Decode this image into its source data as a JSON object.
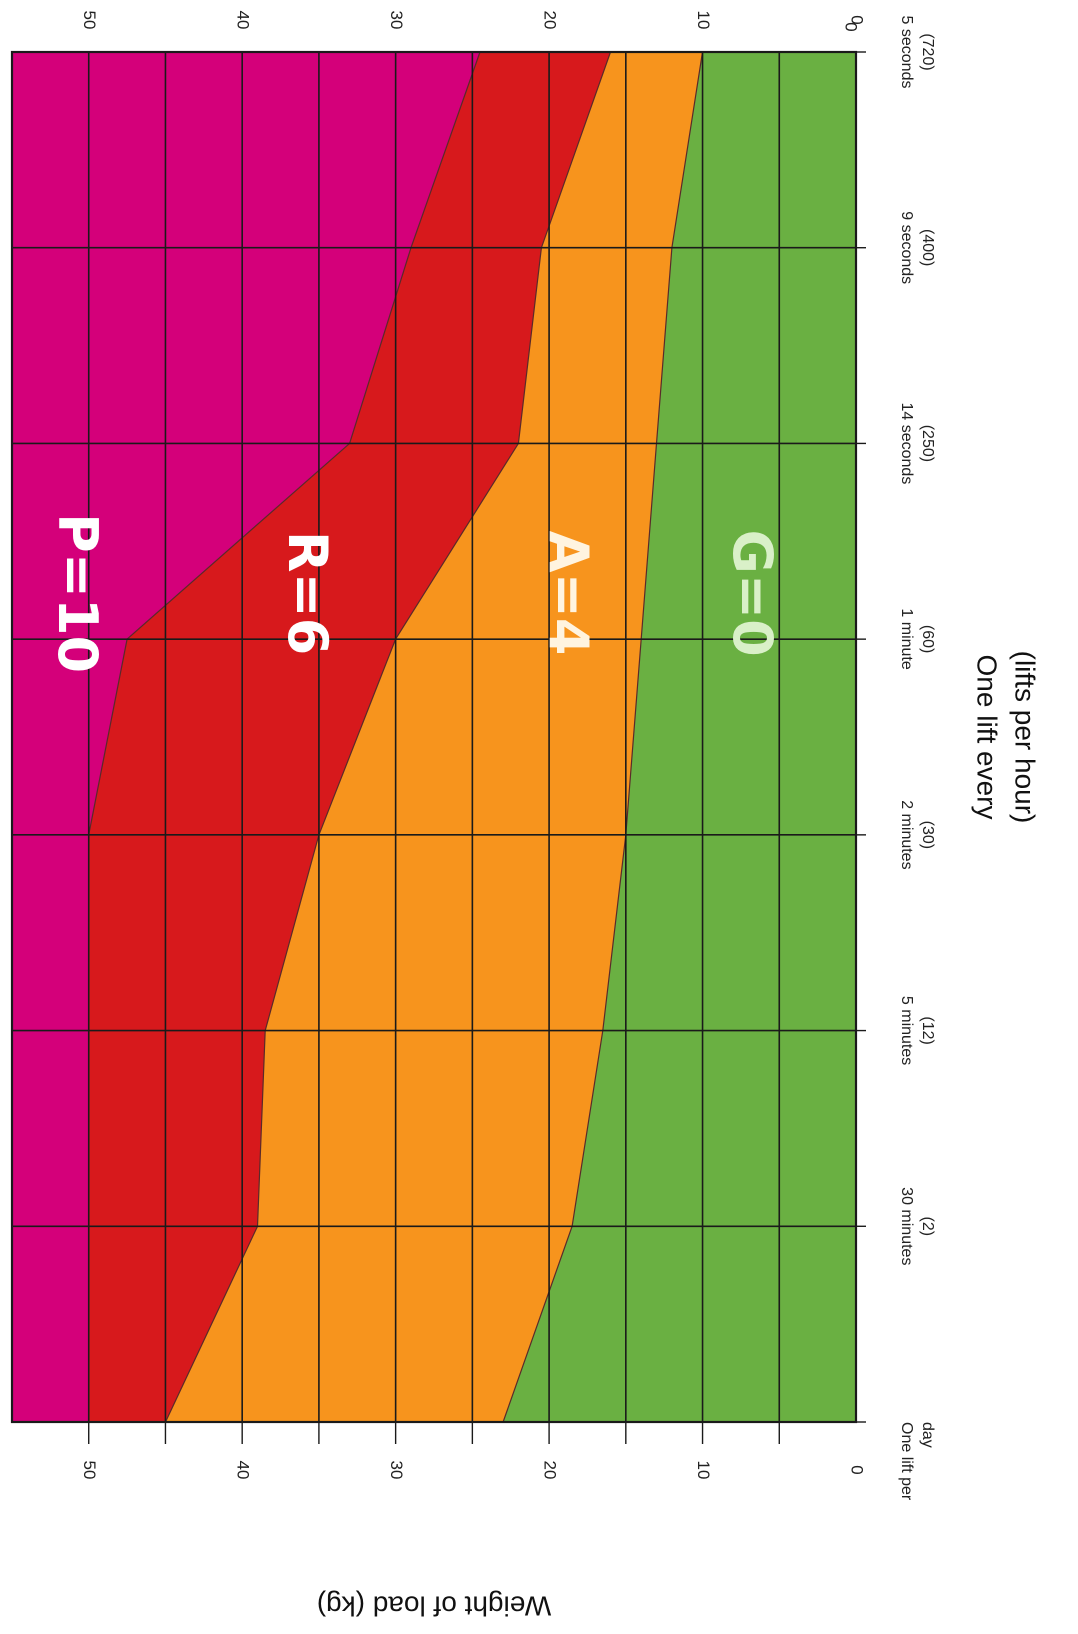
{
  "chart_data": {
    "type": "area",
    "orientation": "rotated-90-clockwise",
    "ylabel": "Weight of load (kg)",
    "xlabel": [
      "One lift every",
      "(lifts per hour)"
    ],
    "ylim": [
      0,
      55
    ],
    "yticks": [
      0,
      10,
      20,
      30,
      40,
      50
    ],
    "grid": true,
    "categories": [
      [
        "One lift per",
        "day"
      ],
      [
        "30 minutes",
        "(2)"
      ],
      [
        "5 minutes",
        "(12)"
      ],
      [
        "2 minutes",
        "(30)"
      ],
      [
        "1 minute",
        "(60)"
      ],
      [
        "14 seconds",
        "(250)"
      ],
      [
        "9 seconds",
        "(400)"
      ],
      [
        "5 seconds",
        "(720)"
      ]
    ],
    "x_zero_label": "0",
    "boundaries": [
      {
        "name": "G/A",
        "values": [
          23,
          18.5,
          16.5,
          15,
          14,
          13,
          12,
          10
        ]
      },
      {
        "name": "A/R",
        "values": [
          45,
          39,
          38.5,
          35,
          30,
          22,
          20.5,
          16
        ]
      },
      {
        "name": "R/P",
        "values": [
          50,
          50,
          50,
          50,
          47.5,
          33,
          29,
          24.5
        ]
      }
    ],
    "zones": [
      {
        "label": "G=0",
        "color": "#6ab042",
        "text_color": "#d9f0c8",
        "anchor_category": 4,
        "anchor_value": 7
      },
      {
        "label": "A=4",
        "color": "#f7941d",
        "text_color": "#fff4e0",
        "anchor_category": 4,
        "anchor_value": 19
      },
      {
        "label": "R=6",
        "color": "#d7191c",
        "text_color": "#ffffff",
        "anchor_category": 4,
        "anchor_value": 36
      },
      {
        "label": "P=10",
        "color": "#d4007a",
        "text_color": "#ffffff",
        "anchor_category": 4,
        "anchor_value": 51
      }
    ]
  }
}
